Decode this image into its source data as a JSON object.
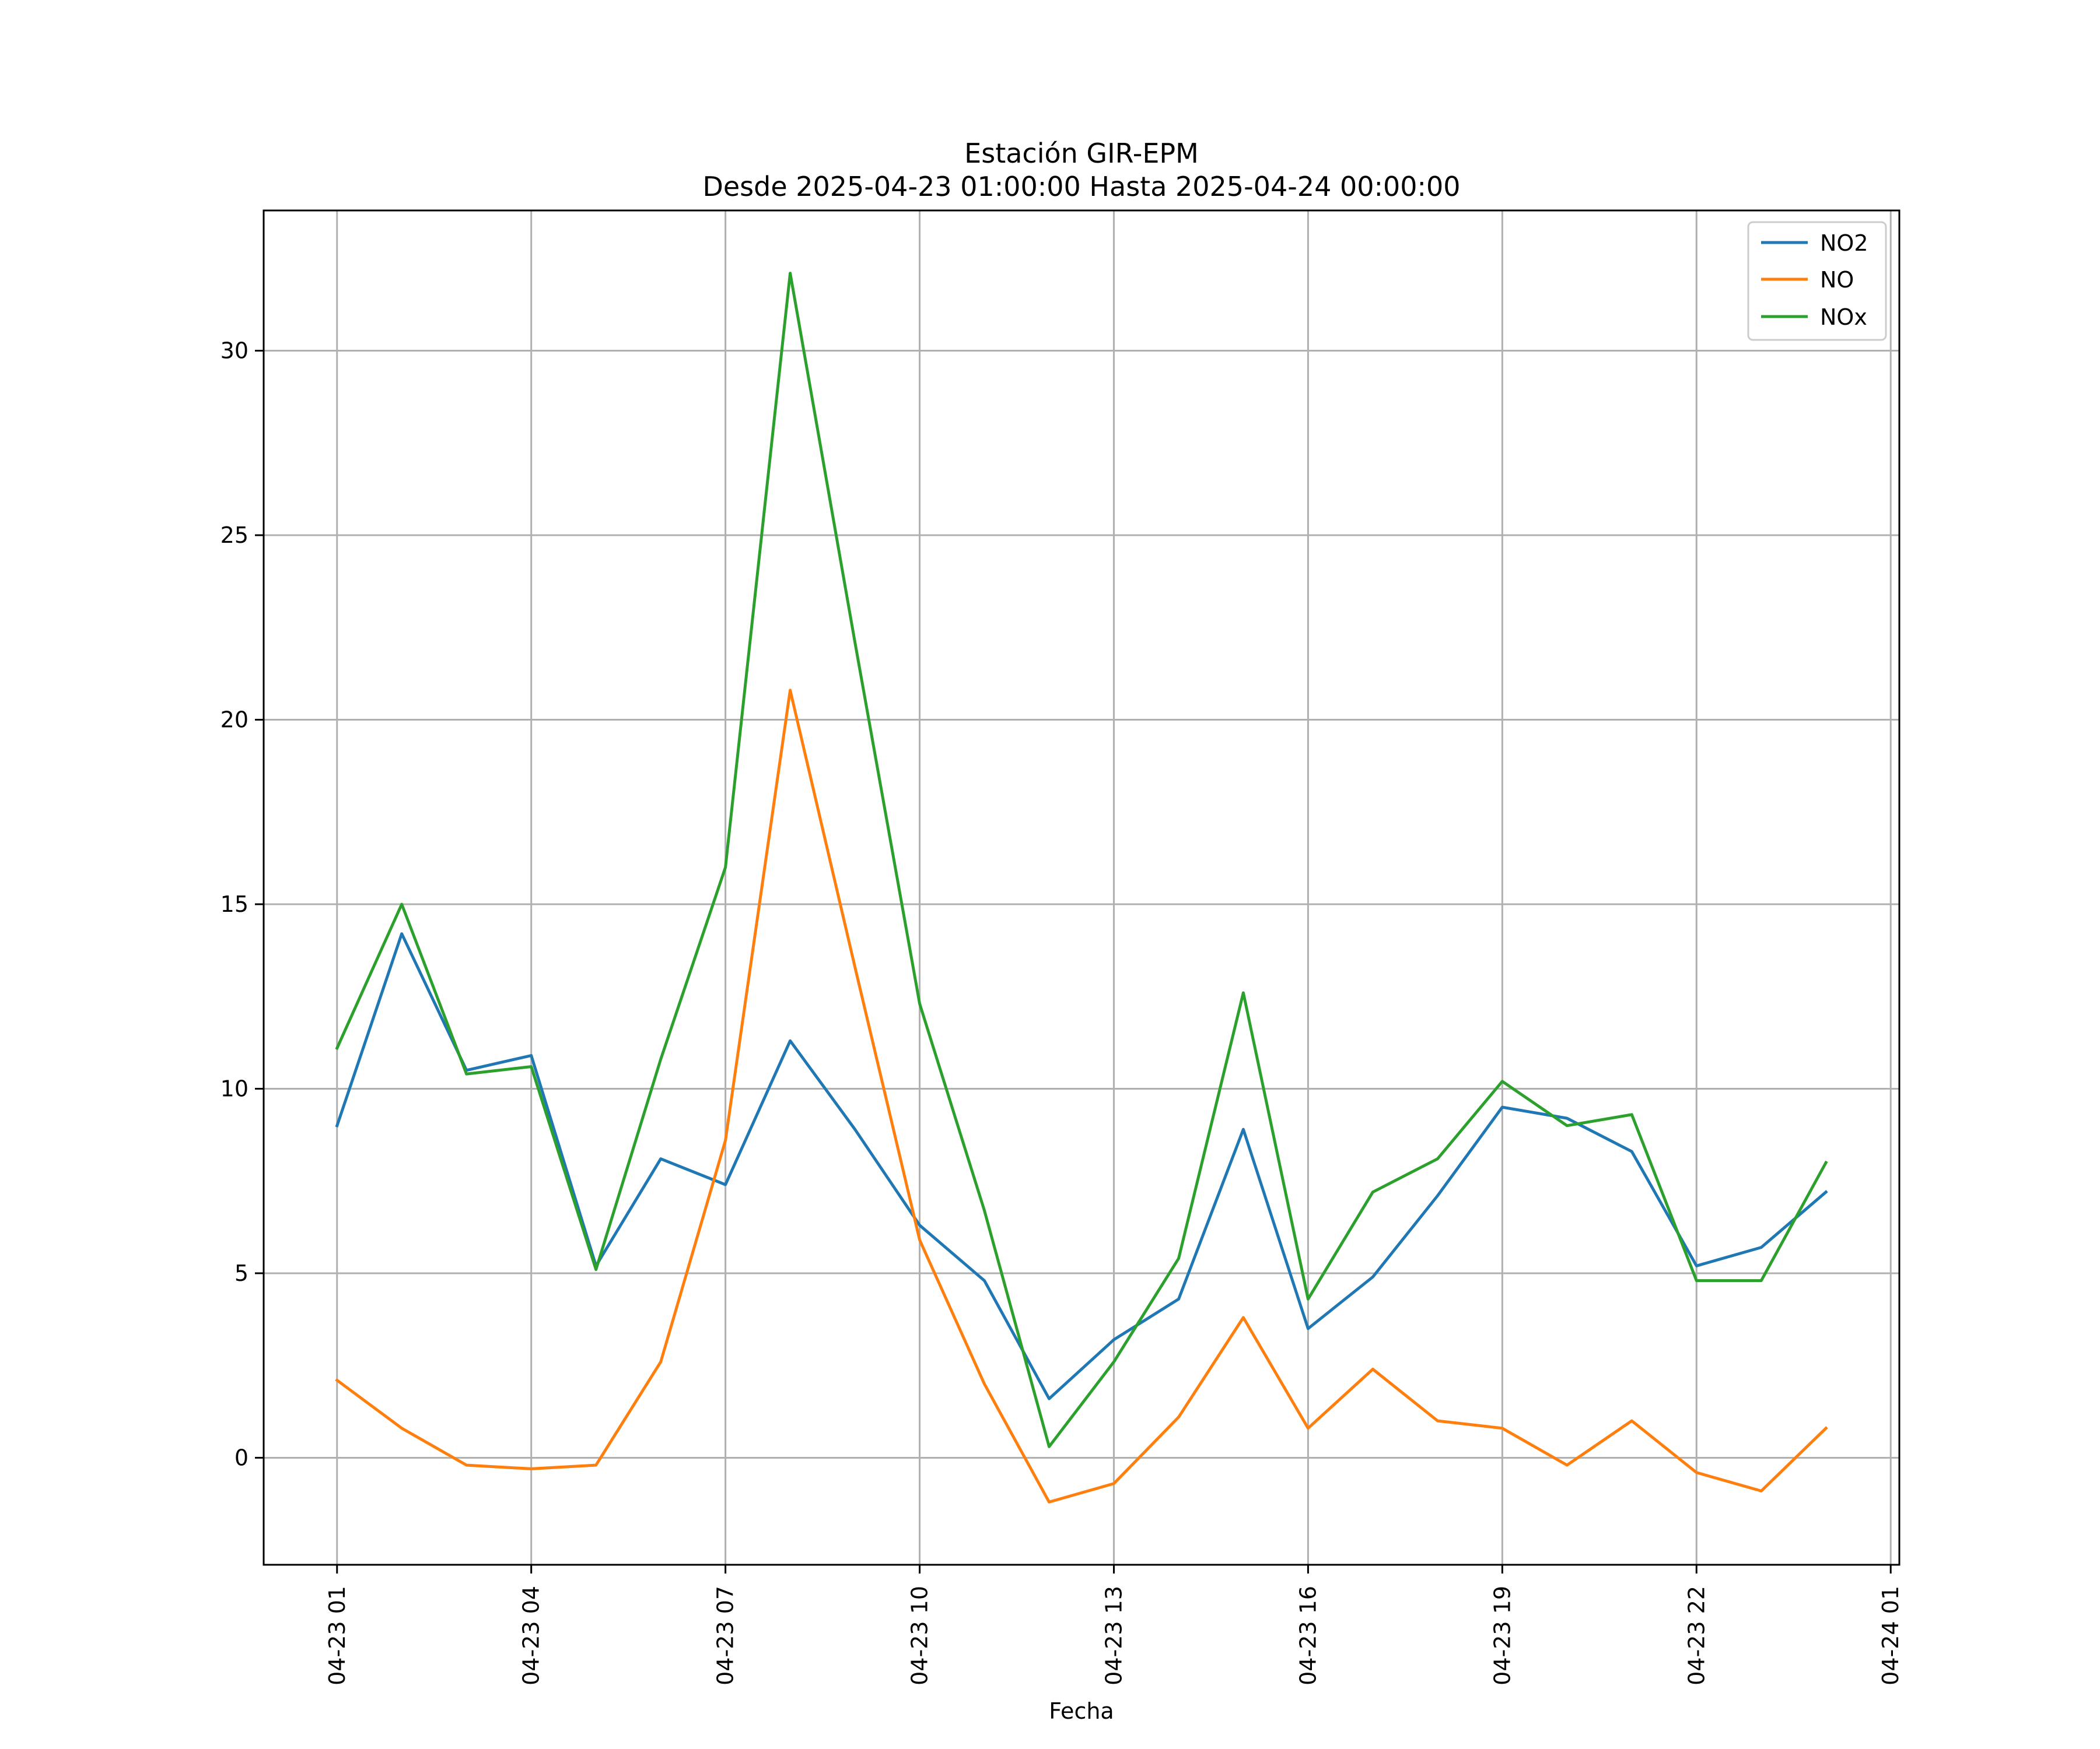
{
  "chart_data": {
    "type": "line",
    "title": "Estación GIR-EPM",
    "subtitle": "Desde 2025-04-23 01:00:00 Hasta 2025-04-24 00:00:00",
    "xlabel": "Fecha",
    "ylabel": "",
    "x": [
      "2025-04-23 01:00",
      "2025-04-23 02:00",
      "2025-04-23 03:00",
      "2025-04-23 04:00",
      "2025-04-23 05:00",
      "2025-04-23 06:00",
      "2025-04-23 07:00",
      "2025-04-23 08:00",
      "2025-04-23 09:00",
      "2025-04-23 10:00",
      "2025-04-23 11:00",
      "2025-04-23 12:00",
      "2025-04-23 13:00",
      "2025-04-23 14:00",
      "2025-04-23 15:00",
      "2025-04-23 16:00",
      "2025-04-23 17:00",
      "2025-04-23 18:00",
      "2025-04-23 19:00",
      "2025-04-23 20:00",
      "2025-04-23 21:00",
      "2025-04-23 22:00",
      "2025-04-23 23:00",
      "2025-04-24 00:00"
    ],
    "xlim": [
      "2025-04-22 23:52",
      "2025-04-24 01:08"
    ],
    "ylim": [
      -2.9,
      33.8
    ],
    "xticks": [
      "04-23 01",
      "04-23 04",
      "04-23 07",
      "04-23 10",
      "04-23 13",
      "04-23 16",
      "04-23 19",
      "04-23 22",
      "04-24 01"
    ],
    "xtick_values": [
      "2025-04-23 01:00",
      "2025-04-23 04:00",
      "2025-04-23 07:00",
      "2025-04-23 10:00",
      "2025-04-23 13:00",
      "2025-04-23 16:00",
      "2025-04-23 19:00",
      "2025-04-23 22:00",
      "2025-04-24 01:00"
    ],
    "yticks": [
      0,
      5,
      10,
      15,
      20,
      25,
      30
    ],
    "grid": true,
    "legend_position": "top-right",
    "series": [
      {
        "name": "NO2",
        "color": "#1f77b4",
        "values": [
          9.0,
          14.2,
          10.5,
          10.9,
          5.2,
          8.1,
          7.4,
          11.3,
          8.9,
          6.3,
          4.8,
          1.6,
          3.2,
          4.3,
          8.9,
          3.5,
          4.9,
          7.1,
          9.5,
          9.2,
          8.3,
          5.2,
          5.7,
          7.2
        ]
      },
      {
        "name": "NO",
        "color": "#ff7f0e",
        "values": [
          2.1,
          0.8,
          -0.2,
          -0.3,
          -0.2,
          2.6,
          8.6,
          20.8,
          13.3,
          5.9,
          2.0,
          -1.2,
          -0.7,
          1.1,
          3.8,
          0.8,
          2.4,
          1.0,
          0.8,
          -0.2,
          1.0,
          -0.4,
          -0.9,
          0.8
        ]
      },
      {
        "name": "NOx",
        "color": "#2ca02c",
        "values": [
          11.1,
          15.0,
          10.4,
          10.6,
          5.1,
          10.8,
          16.0,
          32.1,
          22.1,
          12.3,
          6.7,
          0.3,
          2.6,
          5.4,
          12.6,
          4.3,
          7.2,
          8.1,
          10.2,
          9.0,
          9.3,
          4.8,
          4.8,
          8.0
        ]
      }
    ]
  }
}
